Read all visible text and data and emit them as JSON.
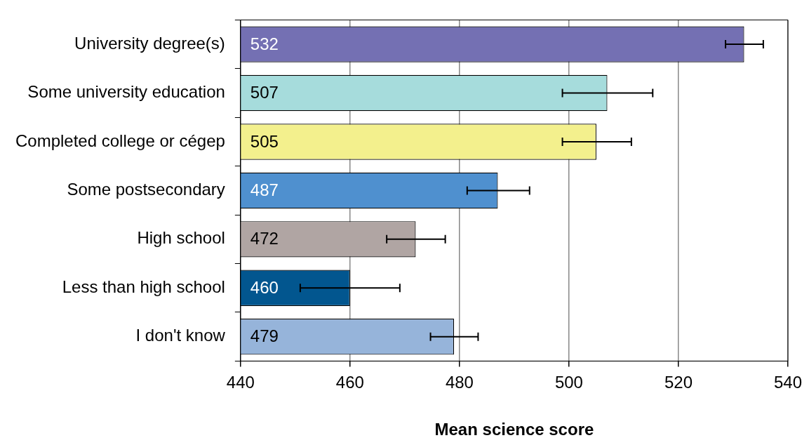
{
  "chart_data": {
    "type": "bar",
    "orientation": "horizontal",
    "xlabel": "Mean science score",
    "categories": [
      "University degree(s)",
      "Some university education",
      "Completed college or cégep",
      "Some postsecondary",
      "High school",
      "Less than high school",
      "I don't know"
    ],
    "values": [
      532,
      507,
      505,
      487,
      472,
      460,
      479
    ],
    "colors": [
      "#7470b3",
      "#a6dcdc",
      "#f3f08d",
      "#4f90cf",
      "#b0a5a3",
      "#02568f",
      "#96b4da"
    ],
    "errors": [
      [
        528.6,
        535.5
      ],
      [
        498.8,
        515.3
      ],
      [
        498.8,
        511.4
      ],
      [
        481.4,
        492.8
      ],
      [
        466.7,
        477.4
      ],
      [
        450.9,
        469.1
      ],
      [
        474.7,
        483.4
      ]
    ],
    "xlim": [
      440,
      540
    ],
    "xticks": [
      440,
      460,
      480,
      500,
      520,
      540
    ],
    "grid": "x",
    "legend": false,
    "data_labels": true
  }
}
